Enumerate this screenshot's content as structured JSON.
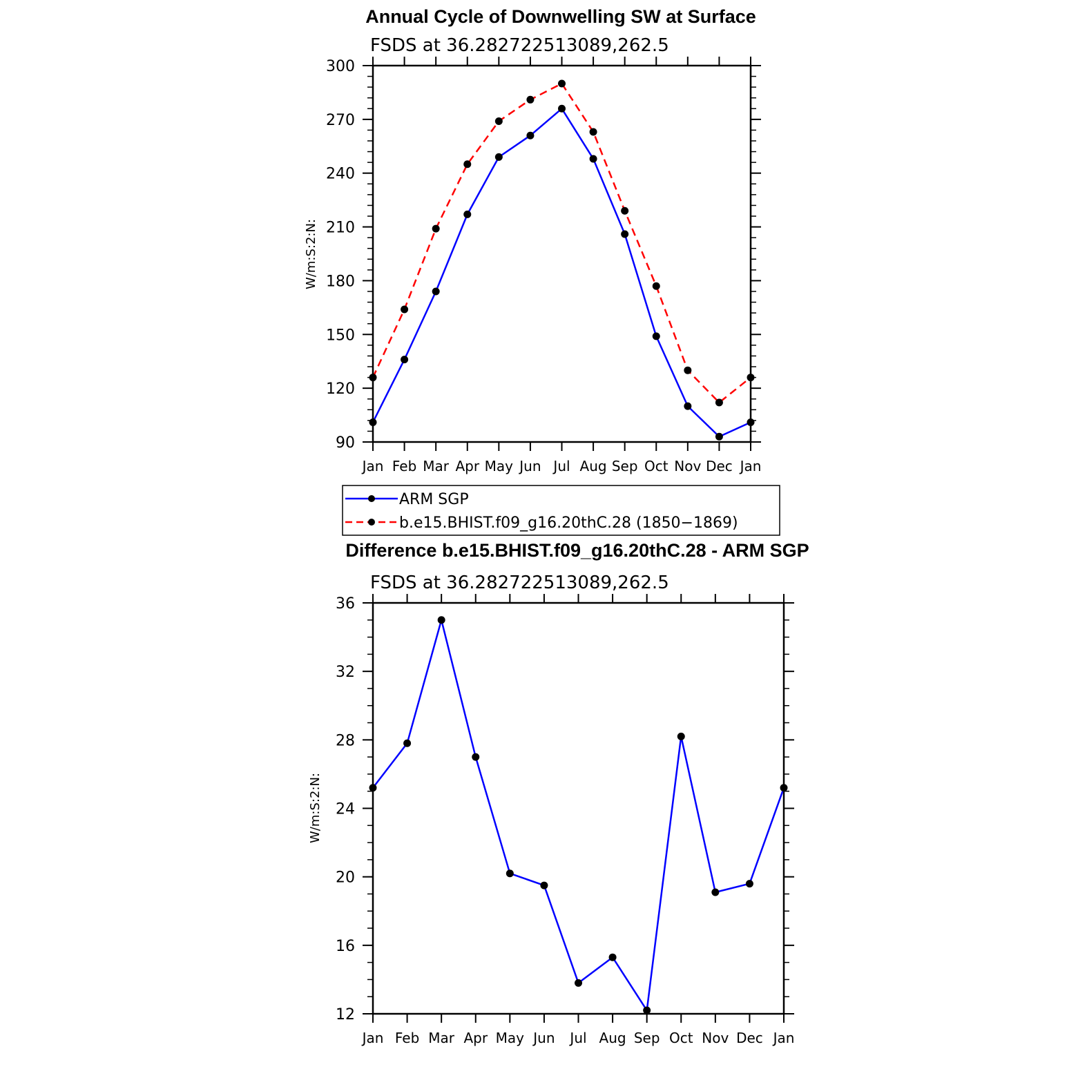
{
  "chart_data": [
    {
      "type": "line",
      "title": "Annual Cycle of Downwelling SW at Surface",
      "subtitle": "FSDS at 36.282722513089,262.5",
      "ylabel": "W/m:S:2:N:",
      "xlabel": "",
      "categories": [
        "Jan",
        "Feb",
        "Mar",
        "Apr",
        "May",
        "Jun",
        "Jul",
        "Aug",
        "Sep",
        "Oct",
        "Nov",
        "Dec",
        "Jan"
      ],
      "ylim": [
        90,
        300
      ],
      "yticks": [
        90,
        120,
        150,
        180,
        210,
        240,
        270,
        300
      ],
      "series": [
        {
          "name": "ARM SGP",
          "color": "#0000ff",
          "style": "solid",
          "marker": "dot",
          "values": [
            101,
            136,
            174,
            217,
            249,
            261,
            276,
            248,
            206,
            149,
            110,
            93,
            101
          ]
        },
        {
          "name": "b.e15.BHIST.f09_g16.20thC.28 (1850−1869)",
          "color": "#ff0000",
          "style": "dashed",
          "marker": "dot",
          "values": [
            126,
            164,
            209,
            245,
            269,
            281,
            290,
            263,
            219,
            177,
            130,
            112,
            126
          ]
        }
      ],
      "legend": {
        "placement": "below",
        "entries": [
          "ARM SGP",
          "b.e15.BHIST.f09_g16.20thC.28 (1850−1869)"
        ]
      },
      "grid": false
    },
    {
      "type": "line",
      "title": "Difference b.e15.BHIST.f09_g16.20thC.28 - ARM SGP",
      "subtitle": "FSDS at 36.282722513089,262.5",
      "ylabel": "W/m:S:2:N:",
      "xlabel": "",
      "categories": [
        "Jan",
        "Feb",
        "Mar",
        "Apr",
        "May",
        "Jun",
        "Jul",
        "Aug",
        "Sep",
        "Oct",
        "Nov",
        "Dec",
        "Jan"
      ],
      "ylim": [
        12,
        36
      ],
      "yticks": [
        12,
        16,
        20,
        24,
        28,
        32,
        36
      ],
      "series": [
        {
          "color": "#0000ff",
          "style": "solid",
          "marker": "dot",
          "values": [
            25.2,
            27.8,
            35.0,
            27.0,
            20.2,
            19.5,
            13.8,
            15.3,
            12.2,
            28.2,
            19.1,
            19.6,
            25.2
          ]
        }
      ],
      "grid": false
    }
  ]
}
